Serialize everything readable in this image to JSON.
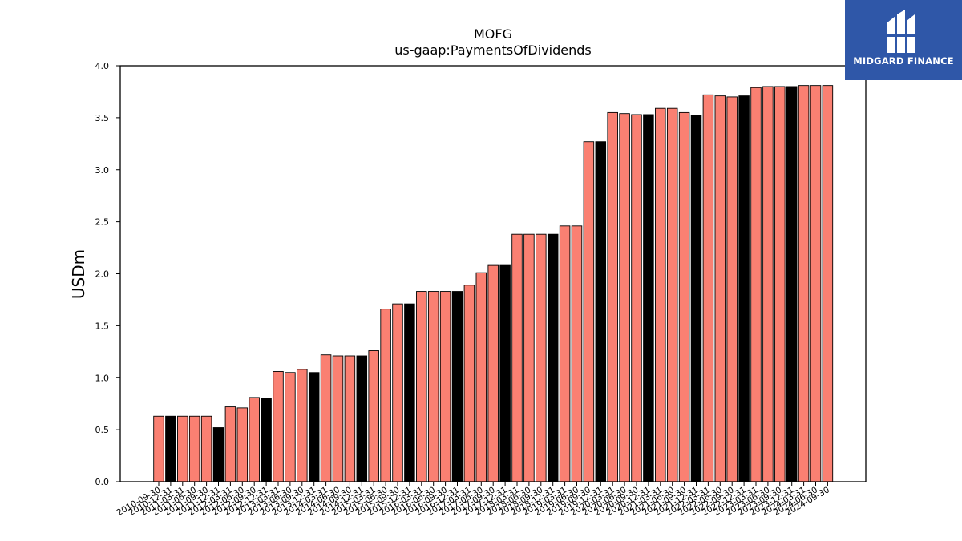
{
  "chart_data": {
    "type": "bar",
    "title": "MOFG",
    "subtitle": "us-gaap:PaymentsOfDividends",
    "xlabel": "",
    "ylabel": "USDm",
    "ylim": [
      0,
      4.0
    ],
    "yticks": [
      "0.0",
      "0.5",
      "1.0",
      "1.5",
      "2.0",
      "2.5",
      "3.0",
      "3.5",
      "4.0"
    ],
    "grid": false,
    "colors": {
      "default": "#fa8072",
      "highlight": "#000000",
      "edge": "#000000"
    },
    "categories": [
      "2010-09-30",
      "2010-12-31",
      "2011-03-31",
      "2011-06-30",
      "2011-09-30",
      "2011-12-31",
      "2012-03-31",
      "2012-06-30",
      "2012-09-30",
      "2012-12-31",
      "2013-03-31",
      "2013-06-30",
      "2013-09-30",
      "2013-12-31",
      "2014-03-31",
      "2014-06-30",
      "2014-09-30",
      "2014-12-31",
      "2015-03-31",
      "2015-06-30",
      "2015-09-30",
      "2015-12-31",
      "2016-03-31",
      "2016-06-30",
      "2016-09-30",
      "2016-12-31",
      "2017-03-31",
      "2017-06-30",
      "2017-09-30",
      "2017-12-31",
      "2018-03-31",
      "2018-06-30",
      "2018-09-30",
      "2018-12-31",
      "2019-03-31",
      "2019-06-30",
      "2019-09-30",
      "2019-12-31",
      "2020-03-31",
      "2020-06-30",
      "2020-09-30",
      "2020-12-31",
      "2021-03-31",
      "2021-06-30",
      "2021-09-30",
      "2021-12-31",
      "2022-03-31",
      "2022-06-30",
      "2022-09-30",
      "2022-12-31",
      "2023-03-31",
      "2023-06-30",
      "2023-09-30",
      "2023-12-31",
      "2024-03-31",
      "2024-06-30",
      "2024-09-30"
    ],
    "values": [
      0.63,
      0.63,
      0.63,
      0.63,
      0.63,
      0.52,
      0.72,
      0.71,
      0.81,
      0.8,
      1.06,
      1.05,
      1.08,
      1.05,
      1.22,
      1.21,
      1.21,
      1.21,
      1.26,
      1.66,
      1.71,
      1.71,
      1.83,
      1.83,
      1.83,
      1.83,
      1.89,
      2.01,
      2.08,
      2.08,
      2.38,
      2.38,
      2.38,
      2.38,
      2.46,
      2.46,
      3.27,
      3.27,
      3.55,
      3.54,
      3.53,
      3.53,
      3.59,
      3.59,
      3.55,
      3.52,
      3.72,
      3.71,
      3.7,
      3.71,
      3.79,
      3.8,
      3.8,
      3.8,
      3.81,
      3.81,
      3.81
    ],
    "highlight": [
      false,
      true,
      false,
      false,
      false,
      true,
      false,
      false,
      false,
      true,
      false,
      false,
      false,
      true,
      false,
      false,
      false,
      true,
      false,
      false,
      false,
      true,
      false,
      false,
      false,
      true,
      false,
      false,
      false,
      true,
      false,
      false,
      false,
      true,
      false,
      false,
      false,
      true,
      false,
      false,
      false,
      true,
      false,
      false,
      false,
      true,
      false,
      false,
      false,
      true,
      false,
      false,
      false,
      true,
      false,
      false,
      false
    ]
  },
  "logo": {
    "text": "MIDGARD FINANCE",
    "mark": "midgard-logo-icon",
    "background": "#2f57a8"
  }
}
